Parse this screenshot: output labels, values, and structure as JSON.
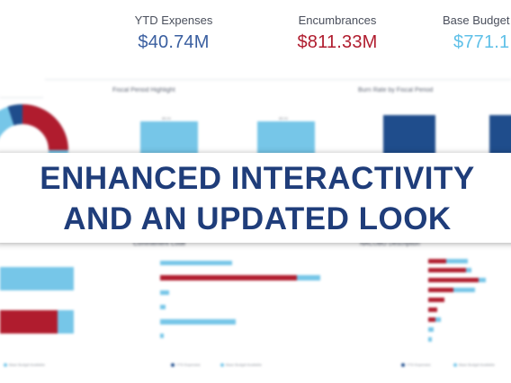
{
  "kpis": [
    {
      "label": "YTD Expenses",
      "value": "$40.74M",
      "color": "#3a5fa0"
    },
    {
      "label": "Encumbrances",
      "value": "$811.33M",
      "color": "#b01c2e"
    },
    {
      "label": "Base Budget A",
      "value": "$771.1",
      "color": "#5fc0e8"
    }
  ],
  "panels": {
    "fiscal_highlight_title": "Fiscal Period Highlight",
    "burn_rate_title": "Burn Rate by Fiscal Period",
    "commitment_title": "Commitment Code",
    "nacubo_title": "NACUBO Description"
  },
  "legends": {
    "base_budget": "Base Budget Available",
    "ytd_expenses": "YTD Expenses"
  },
  "banner": {
    "line1": "ENHANCED INTERACTIVITY",
    "line2": "AND AN UPDATED LOOK"
  },
  "colors": {
    "navy": "#1f4d8c",
    "red": "#b01c2e",
    "light_blue": "#76c6e8",
    "banner_text": "#1f3d7a"
  }
}
